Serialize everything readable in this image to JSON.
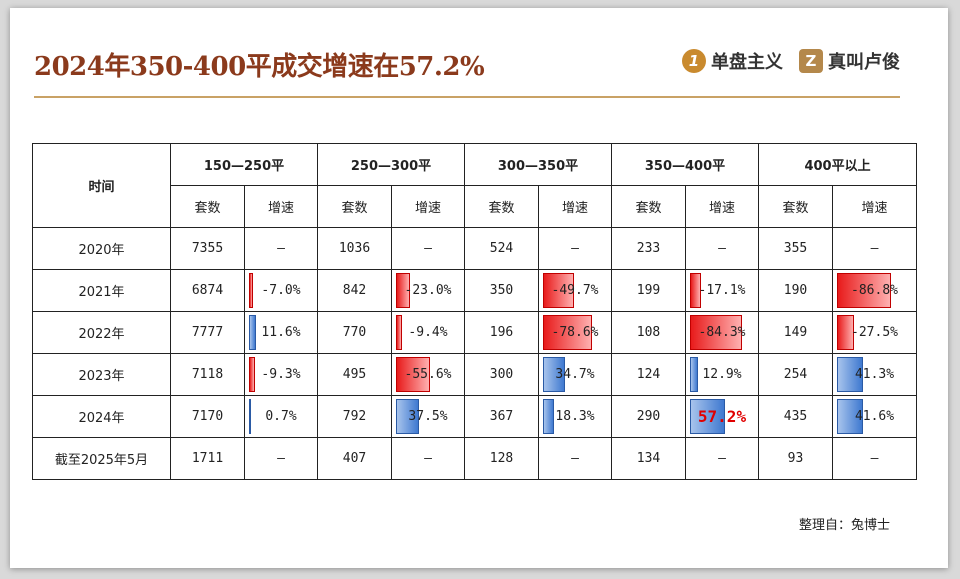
{
  "title": "2024年350-400平成交增速在57.2%",
  "brands": [
    {
      "mark": "1",
      "name": "单盘主义"
    },
    {
      "mark": "Z",
      "name": "真叫卢俊"
    }
  ],
  "table": {
    "time_header": "时间",
    "groups": [
      "150—250平",
      "250—300平",
      "300—350平",
      "350—400平",
      "400平以上"
    ],
    "sub_headers": {
      "count": "套数",
      "rate": "增速"
    },
    "rows": [
      {
        "year": "2020年",
        "cells": [
          {
            "count": "7355",
            "rate": "—",
            "pct": null
          },
          {
            "count": "1036",
            "rate": "—",
            "pct": null
          },
          {
            "count": "524",
            "rate": "—",
            "pct": null
          },
          {
            "count": "233",
            "rate": "—",
            "pct": null
          },
          {
            "count": "355",
            "rate": "—",
            "pct": null
          }
        ]
      },
      {
        "year": "2021年",
        "cells": [
          {
            "count": "6874",
            "rate": "-7.0%",
            "pct": -7.0
          },
          {
            "count": "842",
            "rate": "-23.0%",
            "pct": -23.0
          },
          {
            "count": "350",
            "rate": "-49.7%",
            "pct": -49.7
          },
          {
            "count": "199",
            "rate": "-17.1%",
            "pct": -17.1
          },
          {
            "count": "190",
            "rate": "-86.8%",
            "pct": -86.8
          }
        ]
      },
      {
        "year": "2022年",
        "cells": [
          {
            "count": "7777",
            "rate": "11.6%",
            "pct": 11.6
          },
          {
            "count": "770",
            "rate": "-9.4%",
            "pct": -9.4
          },
          {
            "count": "196",
            "rate": "-78.6%",
            "pct": -78.6
          },
          {
            "count": "108",
            "rate": "-84.3%",
            "pct": -84.3
          },
          {
            "count": "149",
            "rate": "-27.5%",
            "pct": -27.5
          }
        ]
      },
      {
        "year": "2023年",
        "cells": [
          {
            "count": "7118",
            "rate": "-9.3%",
            "pct": -9.3
          },
          {
            "count": "495",
            "rate": "-55.6%",
            "pct": -55.6
          },
          {
            "count": "300",
            "rate": "34.7%",
            "pct": 34.7
          },
          {
            "count": "124",
            "rate": "12.9%",
            "pct": 12.9
          },
          {
            "count": "254",
            "rate": "41.3%",
            "pct": 41.3
          }
        ]
      },
      {
        "year": "2024年",
        "cells": [
          {
            "count": "7170",
            "rate": "0.7%",
            "pct": 0.7
          },
          {
            "count": "792",
            "rate": "37.5%",
            "pct": 37.5
          },
          {
            "count": "367",
            "rate": "18.3%",
            "pct": 18.3
          },
          {
            "count": "290",
            "rate": "57.2%",
            "pct": 57.2,
            "highlight": true
          },
          {
            "count": "435",
            "rate": "41.6%",
            "pct": 41.6
          }
        ]
      },
      {
        "year": "截至2025年5月",
        "cells": [
          {
            "count": "1711",
            "rate": "—",
            "pct": null
          },
          {
            "count": "407",
            "rate": "—",
            "pct": null
          },
          {
            "count": "128",
            "rate": "—",
            "pct": null
          },
          {
            "count": "134",
            "rate": "—",
            "pct": null
          },
          {
            "count": "93",
            "rate": "—",
            "pct": null
          }
        ]
      }
    ]
  },
  "colors": {
    "negative": "#e81b1b",
    "positive": "#3f79d0",
    "highlight": "#e00000",
    "title": "#8b3a1c",
    "rule": "#c9a265"
  },
  "source": "整理自：兔博士"
}
